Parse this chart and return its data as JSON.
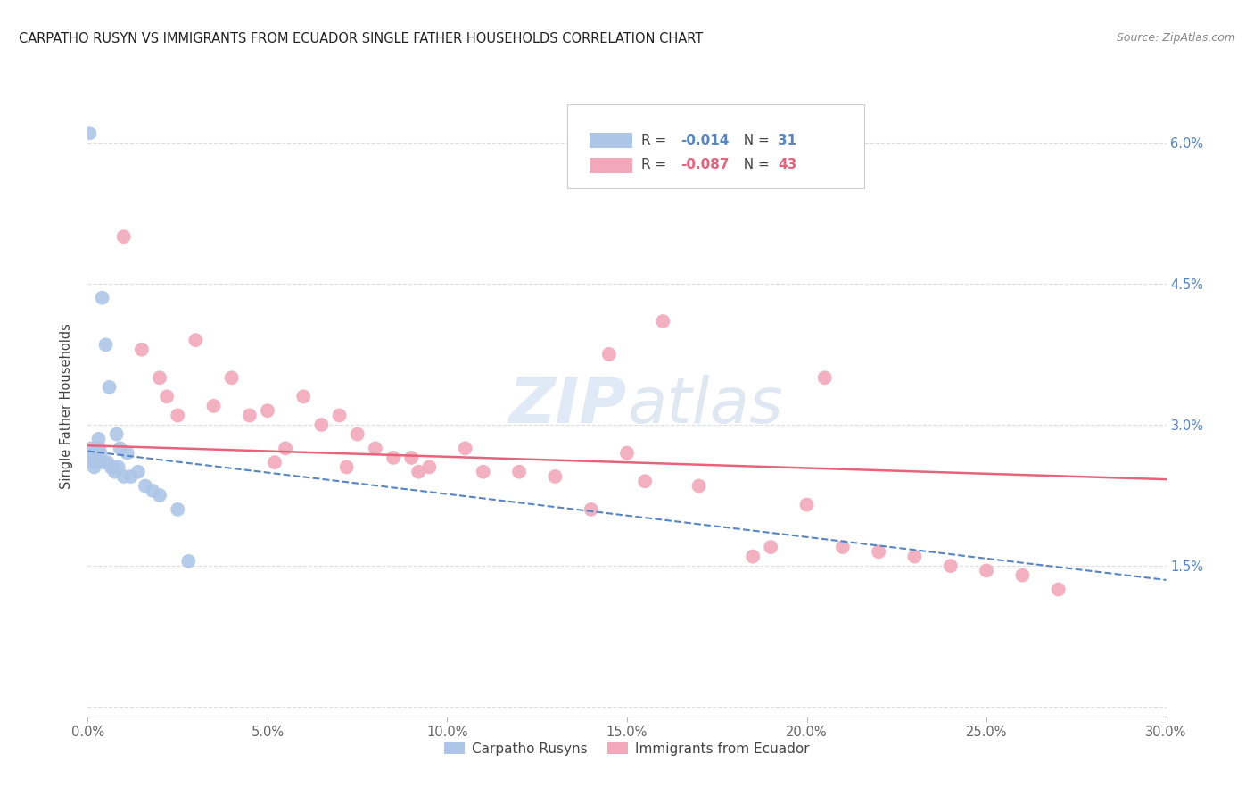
{
  "title": "CARPATHO RUSYN VS IMMIGRANTS FROM ECUADOR SINGLE FATHER HOUSEHOLDS CORRELATION CHART",
  "source": "Source: ZipAtlas.com",
  "ylabel": "Single Father Households",
  "blue_R": "-0.014",
  "blue_N": "31",
  "pink_R": "-0.087",
  "pink_N": "43",
  "blue_color": "#adc6e8",
  "pink_color": "#f2a8ba",
  "blue_line_color": "#5585c5",
  "pink_line_color": "#e8637a",
  "xlim": [
    0,
    30
  ],
  "ylim": [
    -0.1,
    6.5
  ],
  "xticks": [
    0,
    5,
    10,
    15,
    20,
    25,
    30
  ],
  "yticks_right": [
    0,
    1.5,
    3.0,
    4.5,
    6.0
  ],
  "watermark_color": "#d5e5f5",
  "grid_color": "#dddddd",
  "blue_x": [
    0.05,
    0.1,
    0.12,
    0.15,
    0.18,
    0.2,
    0.22,
    0.25,
    0.3,
    0.32,
    0.35,
    0.4,
    0.45,
    0.5,
    0.55,
    0.6,
    0.65,
    0.7,
    0.75,
    0.8,
    0.85,
    0.9,
    1.0,
    1.1,
    1.2,
    1.4,
    1.6,
    1.8,
    2.0,
    2.5,
    2.8
  ],
  "blue_y": [
    6.1,
    2.75,
    2.65,
    2.6,
    2.55,
    2.7,
    2.65,
    2.6,
    2.85,
    2.75,
    2.7,
    4.35,
    2.6,
    3.85,
    2.6,
    3.4,
    2.55,
    2.55,
    2.5,
    2.9,
    2.55,
    2.75,
    2.45,
    2.7,
    2.45,
    2.5,
    2.35,
    2.3,
    2.25,
    2.1,
    1.55
  ],
  "pink_x": [
    1.0,
    1.5,
    2.0,
    2.2,
    2.5,
    3.0,
    3.5,
    4.0,
    4.5,
    5.0,
    5.5,
    6.0,
    6.5,
    7.0,
    7.5,
    8.0,
    8.5,
    9.0,
    9.5,
    10.5,
    11.0,
    12.0,
    13.0,
    14.0,
    15.0,
    15.5,
    17.0,
    19.0,
    20.0,
    21.0,
    22.0,
    23.0,
    24.0,
    25.0,
    26.0,
    27.0,
    14.5,
    16.0,
    18.5,
    5.2,
    7.2,
    9.2,
    20.5
  ],
  "pink_y": [
    5.0,
    3.8,
    3.5,
    3.3,
    3.1,
    3.9,
    3.2,
    3.5,
    3.1,
    3.15,
    2.75,
    3.3,
    3.0,
    3.1,
    2.9,
    2.75,
    2.65,
    2.65,
    2.55,
    2.75,
    2.5,
    2.5,
    2.45,
    2.1,
    2.7,
    2.4,
    2.35,
    1.7,
    2.15,
    1.7,
    1.65,
    1.6,
    1.5,
    1.45,
    1.4,
    1.25,
    3.75,
    4.1,
    1.6,
    2.6,
    2.55,
    2.5,
    3.5
  ],
  "blue_trend_x0": 0,
  "blue_trend_x1": 30,
  "blue_trend_y0": 2.72,
  "blue_trend_y1": 1.35,
  "pink_trend_x0": 0,
  "pink_trend_x1": 30,
  "pink_trend_y0": 2.78,
  "pink_trend_y1": 2.42
}
